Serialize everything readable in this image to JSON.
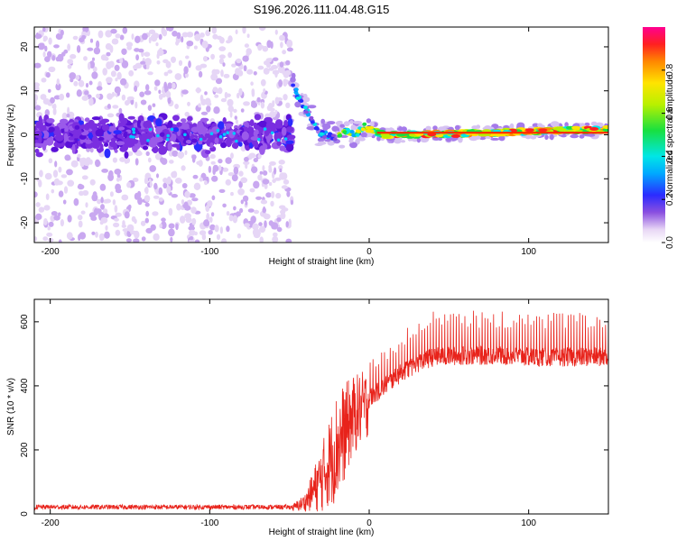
{
  "title": "S196.2026.111.04.48.G15",
  "chart_data": [
    {
      "type": "heatmap",
      "name": "spectrogram",
      "xlabel": "Height of straight line (km)",
      "ylabel": "Frequency (Hz)",
      "xlim": [
        -210,
        150
      ],
      "ylim": [
        -24.5,
        24.5
      ],
      "x_ticks": [
        -200,
        -100,
        0,
        100
      ],
      "x_tick_labels": [
        "-200",
        "-100",
        "0",
        "100"
      ],
      "y_ticks": [
        -20,
        -10,
        0,
        10,
        20
      ],
      "y_tick_labels": [
        "-20",
        "-10",
        "0",
        "10",
        "20"
      ],
      "noise_region_x": [
        -210,
        -48
      ],
      "noise_band_halfwidth_hz": 5,
      "track": {
        "x": [
          -48,
          -45,
          -42,
          -38,
          -35,
          -32,
          -28,
          -25,
          -22,
          -18,
          -15,
          -12,
          -8,
          -5,
          -2,
          0,
          3,
          6,
          10,
          20,
          40,
          60,
          80,
          100,
          120,
          150
        ],
        "hz": [
          12,
          9,
          7,
          5,
          3,
          0.5,
          0,
          0,
          -0.5,
          0,
          1,
          0.5,
          0,
          1.5,
          2,
          1.5,
          1,
          0.5,
          0,
          0,
          0.2,
          0.3,
          0.5,
          0.8,
          1,
          1.2
        ]
      },
      "colorbar": {
        "label": "Normalized spectral amplitude",
        "range": [
          0,
          1
        ],
        "ticks": [
          0.0,
          0.2,
          0.4,
          0.6,
          0.8
        ],
        "tick_labels": [
          "0.0",
          "0.2",
          "0.4",
          "0.6",
          "0.8"
        ]
      }
    },
    {
      "type": "line",
      "name": "snr",
      "xlabel": "Height of straight line (km)",
      "ylabel": "SNR (10 * v/v)",
      "xlim": [
        -210,
        150
      ],
      "ylim": [
        0,
        670
      ],
      "x_ticks": [
        -200,
        -100,
        0,
        100
      ],
      "x_tick_labels": [
        "-200",
        "-100",
        "0",
        "100"
      ],
      "y_ticks": [
        0,
        200,
        400,
        600
      ],
      "y_tick_labels": [
        "0",
        "200",
        "400",
        "600"
      ],
      "series": [
        {
          "name": "SNR",
          "color": "#e8231b",
          "x": [
            -210,
            -48,
            -40,
            -30,
            -20,
            -10,
            0,
            10,
            20,
            30,
            40,
            60,
            80,
            100,
            120,
            150
          ],
          "baseline": [
            20,
            20,
            40,
            120,
            230,
            320,
            360,
            400,
            440,
            470,
            490,
            495,
            495,
            490,
            490,
            490
          ],
          "spikes": [
            15,
            15,
            40,
            150,
            250,
            180,
            150,
            120,
            130,
            150,
            150,
            140,
            140,
            140,
            140,
            140
          ]
        }
      ]
    }
  ]
}
